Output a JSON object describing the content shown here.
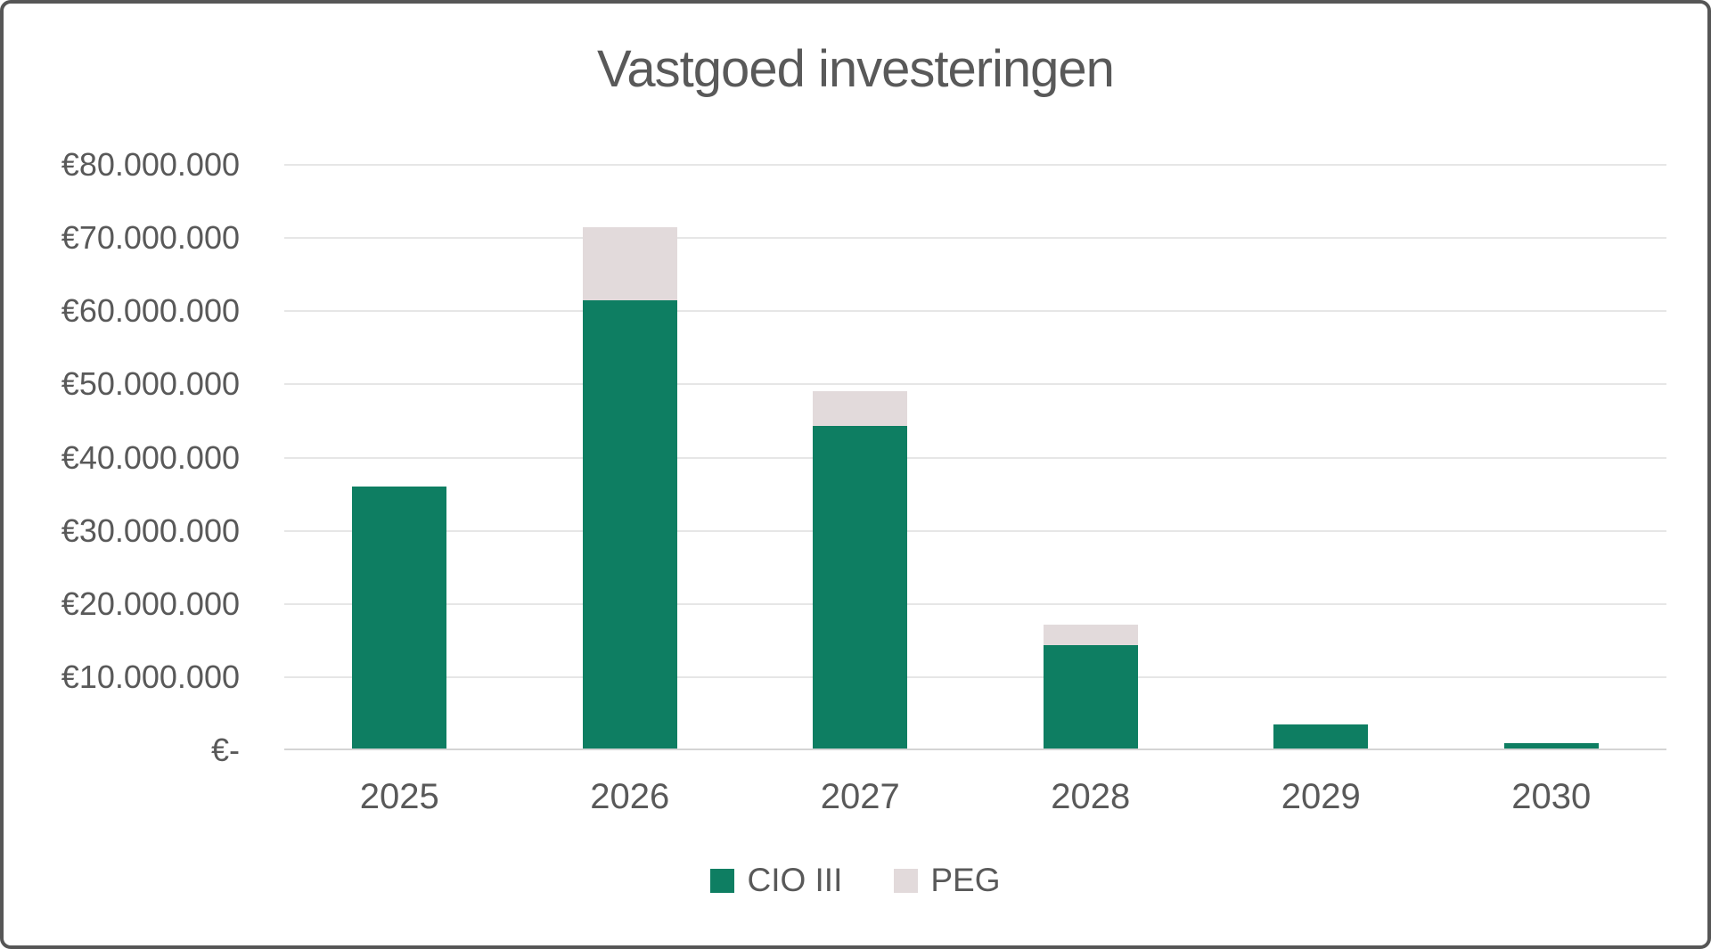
{
  "title": "Vastgoed investeringen",
  "chart_data": {
    "type": "bar",
    "stacked": true,
    "title": "Vastgoed investeringen",
    "categories": [
      "2025",
      "2026",
      "2027",
      "2028",
      "2029",
      "2030"
    ],
    "series": [
      {
        "name": "CIO III",
        "color": "#0E7E62",
        "values": [
          36000000,
          61500000,
          44300000,
          14400000,
          3500000,
          1000000
        ]
      },
      {
        "name": "PEG",
        "color": "#E2DADB",
        "values": [
          0,
          10000000,
          4800000,
          2800000,
          0,
          0
        ]
      }
    ],
    "y_axis": {
      "min": 0,
      "max": 80000000,
      "tick_interval": 10000000,
      "tick_labels_bottom_to_top": [
        "€-",
        "€10.000.000",
        "€20.000.000",
        "€30.000.000",
        "€40.000.000",
        "€50.000.000",
        "€60.000.000",
        "€70.000.000",
        "€80.000.000"
      ]
    },
    "grid": true,
    "legend_position": "bottom",
    "legend_entries": [
      "CIO III",
      "PEG"
    ]
  },
  "colors": {
    "text": "#595959",
    "gridline": "#E6E6E6",
    "axis_line": "#D4D4D4",
    "background": "#FFFFFF",
    "border": "#565656"
  }
}
